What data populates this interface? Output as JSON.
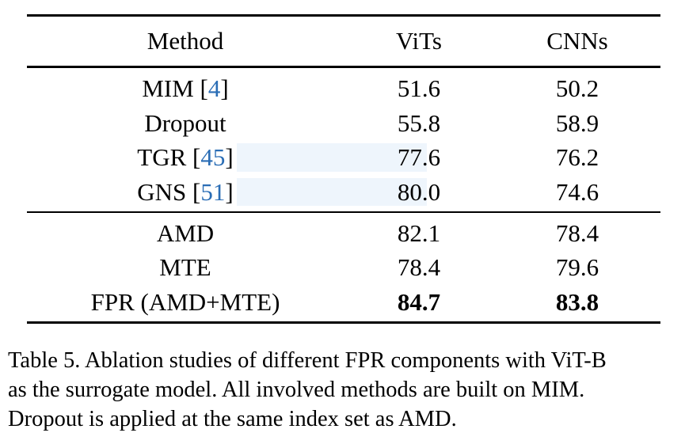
{
  "table": {
    "headers": {
      "method": "Method",
      "vits": "ViTs",
      "cnns": "CNNs"
    },
    "group1": [
      {
        "method": "MIM",
        "cite": "4",
        "vits": "51.6",
        "cnns": "50.2"
      },
      {
        "method": "Dropout",
        "cite": "",
        "vits": "55.8",
        "cnns": "58.9"
      },
      {
        "method": "TGR",
        "cite": "45",
        "vits": "77.6",
        "cnns": "76.2"
      },
      {
        "method": "GNS",
        "cite": "51",
        "vits": "80.0",
        "cnns": "74.6"
      }
    ],
    "group2": [
      {
        "method": "AMD",
        "vits": "82.1",
        "cnns": "78.4"
      },
      {
        "method": "MTE",
        "vits": "78.4",
        "cnns": "79.6"
      },
      {
        "method": "FPR (AMD+MTE)",
        "vits": "84.7",
        "cnns": "83.8"
      }
    ]
  },
  "caption": {
    "line1": "Table 5. Ablation studies of different FPR components with ViT-B",
    "line2": "as the surrogate model.  All involved methods are built on MIM.",
    "line3": "Dropout is applied at the same index set as AMD."
  },
  "colors": {
    "citation": "#2a6db5",
    "highlight": "#eef5fc"
  }
}
